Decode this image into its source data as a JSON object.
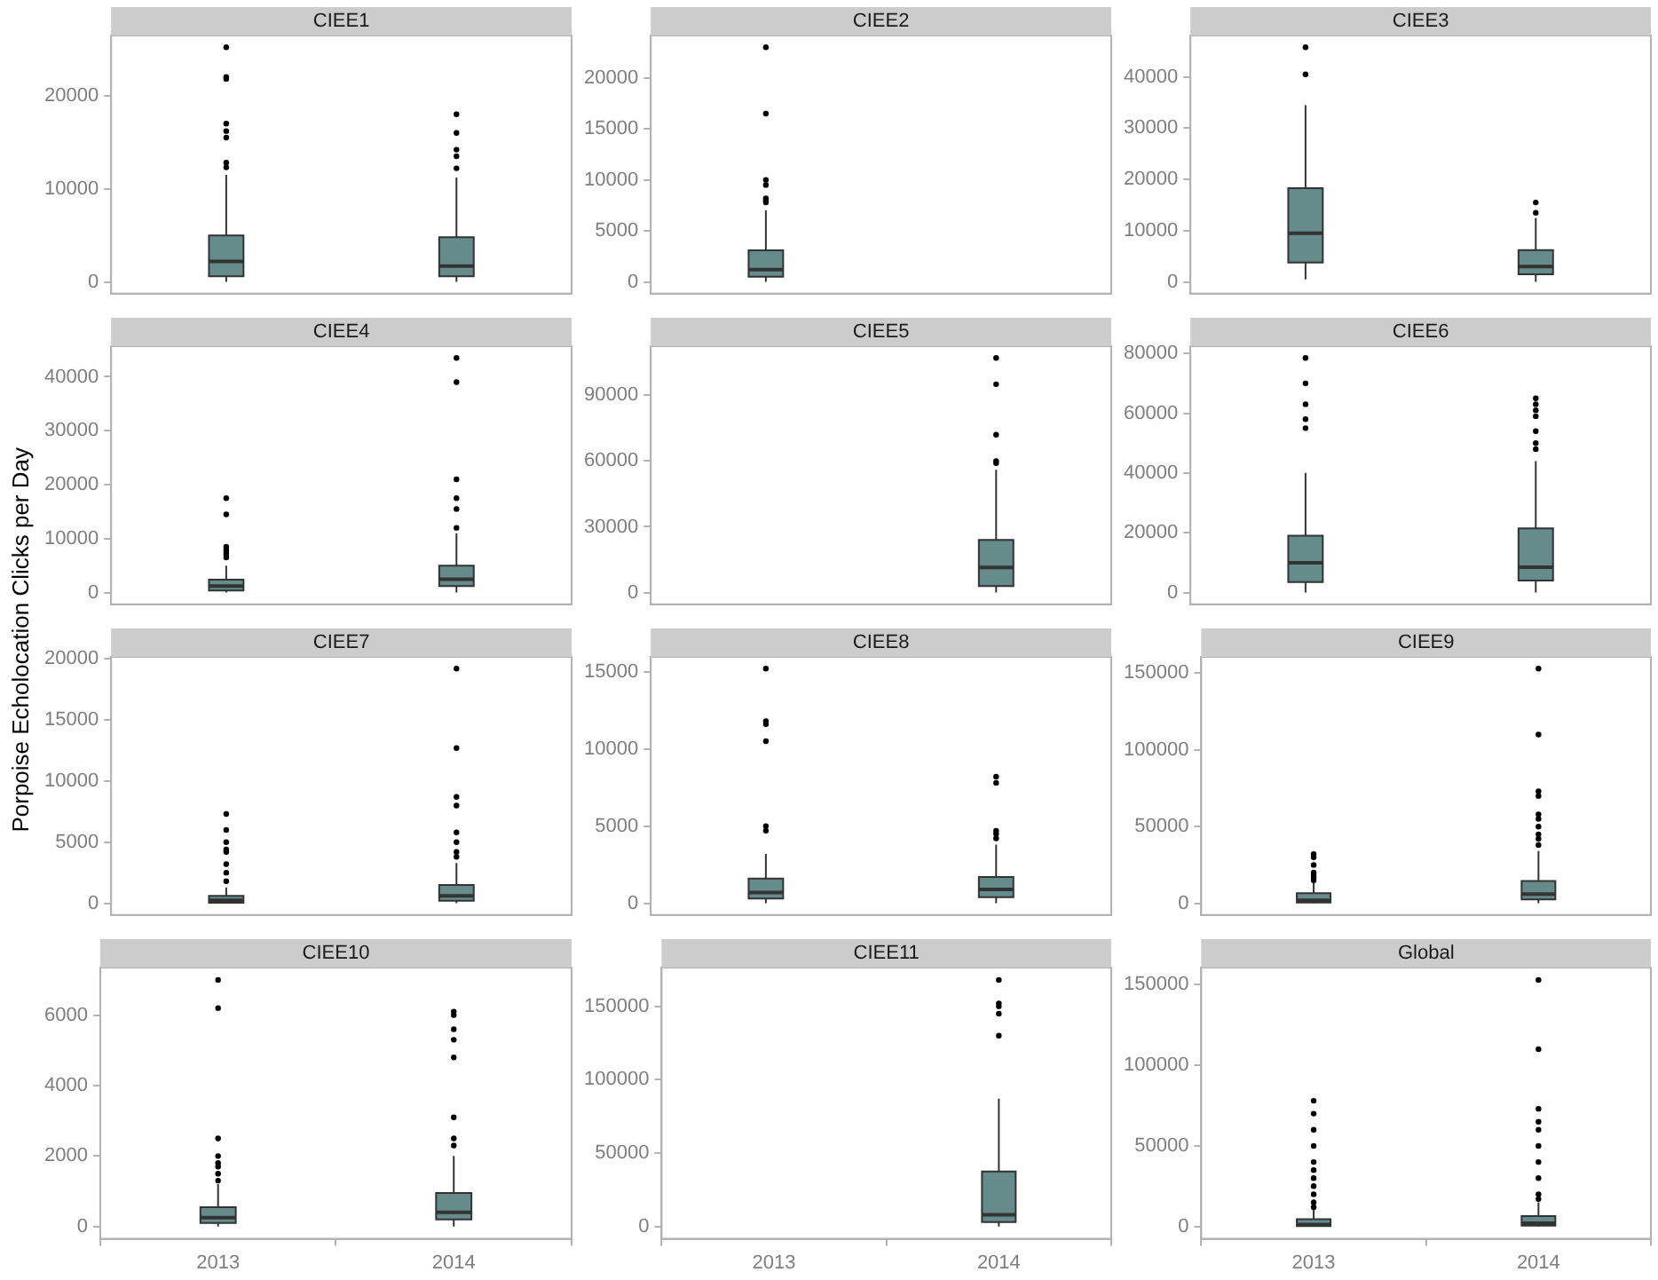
{
  "chart_data": [
    {
      "type": "box",
      "title": "CIEE1",
      "categories": [
        "2013",
        "2014"
      ],
      "color": "#668b8b",
      "ylim": [
        -1260,
        26460
      ],
      "yticks": [
        0,
        10000,
        20000
      ],
      "tick_labels": "y",
      "boxes": [
        {
          "low": 0,
          "q1": 600,
          "median": 2200,
          "q3": 5000,
          "high": 11500,
          "outliers": [
            12300,
            12800,
            15500,
            16200,
            17000,
            21800,
            22000,
            25200
          ]
        },
        {
          "low": 0,
          "q1": 600,
          "median": 1700,
          "q3": 4800,
          "high": 11200,
          "outliers": [
            12200,
            13500,
            14200,
            16000,
            18000
          ]
        }
      ]
    },
    {
      "type": "box",
      "title": "CIEE2",
      "categories": [
        "2013",
        "2014"
      ],
      "color": "#668b8b",
      "ylim": [
        -1150,
        24150
      ],
      "yticks": [
        0,
        5000,
        10000,
        15000,
        20000
      ],
      "tick_labels": "y",
      "boxes": [
        {
          "low": 0,
          "q1": 500,
          "median": 1200,
          "q3": 3100,
          "high": 7000,
          "outliers": [
            7800,
            8000,
            8200,
            9500,
            10000,
            16500,
            23000
          ]
        },
        null
      ]
    },
    {
      "type": "box",
      "title": "CIEE3",
      "categories": [
        "2013",
        "2014"
      ],
      "color": "#668b8b",
      "ylim": [
        -2290,
        48090
      ],
      "yticks": [
        0,
        10000,
        20000,
        30000,
        40000
      ],
      "tick_labels": "y",
      "boxes": [
        {
          "low": 500,
          "q1": 3800,
          "median": 9500,
          "q3": 18300,
          "high": 34500,
          "outliers": [
            40500,
            45800
          ]
        },
        {
          "low": 0,
          "q1": 1500,
          "median": 3000,
          "q3": 6200,
          "high": 12500,
          "outliers": [
            13500,
            15500
          ]
        }
      ]
    },
    {
      "type": "box",
      "title": "CIEE4",
      "categories": [
        "2013",
        "2014"
      ],
      "color": "#668b8b",
      "ylim": [
        -2175,
        45675
      ],
      "yticks": [
        0,
        10000,
        20000,
        30000,
        40000
      ],
      "tick_labels": "y",
      "boxes": [
        {
          "low": 0,
          "q1": 400,
          "median": 1200,
          "q3": 2400,
          "high": 5000,
          "outliers": [
            6500,
            7000,
            7500,
            8000,
            8500,
            14500,
            17500
          ]
        },
        {
          "low": 0,
          "q1": 1200,
          "median": 2500,
          "q3": 5000,
          "high": 11000,
          "outliers": [
            12000,
            15500,
            17500,
            21000,
            39000,
            43500
          ]
        }
      ]
    },
    {
      "type": "box",
      "title": "CIEE5",
      "categories": [
        "2013",
        "2014"
      ],
      "color": "#668b8b",
      "ylim": [
        -5350,
        112350
      ],
      "yticks": [
        0,
        30000,
        60000,
        90000
      ],
      "tick_labels": "y",
      "boxes": [
        null,
        {
          "low": 0,
          "q1": 3000,
          "median": 11500,
          "q3": 24000,
          "high": 56000,
          "outliers": [
            59000,
            60000,
            72000,
            95000,
            107000
          ]
        }
      ]
    },
    {
      "type": "box",
      "title": "CIEE6",
      "categories": [
        "2013",
        "2014"
      ],
      "color": "#668b8b",
      "ylim": [
        -3925,
        82425
      ],
      "yticks": [
        0,
        20000,
        40000,
        60000,
        80000
      ],
      "tick_labels": "y",
      "boxes": [
        {
          "low": 0,
          "q1": 3500,
          "median": 10000,
          "q3": 19000,
          "high": 40000,
          "outliers": [
            55000,
            58000,
            63000,
            70000,
            78500
          ]
        },
        {
          "low": 0,
          "q1": 4000,
          "median": 8500,
          "q3": 21500,
          "high": 44000,
          "outliers": [
            48000,
            50000,
            54000,
            59000,
            61000,
            63000,
            65000
          ]
        }
      ]
    },
    {
      "type": "box",
      "title": "CIEE7",
      "ylabel": "Porpoise Echolocation Clicks per Day",
      "categories": [
        "2013",
        "2014"
      ],
      "color": "#668b8b",
      "ylim": [
        -960,
        20160
      ],
      "yticks": [
        0,
        5000,
        10000,
        15000,
        20000
      ],
      "tick_labels": "y",
      "boxes": [
        {
          "low": 0,
          "q1": 50,
          "median": 250,
          "q3": 600,
          "high": 1300,
          "outliers": [
            1800,
            2500,
            3200,
            4200,
            4400,
            5000,
            6000,
            7300
          ]
        },
        {
          "low": 0,
          "q1": 200,
          "median": 600,
          "q3": 1500,
          "high": 3300,
          "outliers": [
            3800,
            4200,
            5000,
            5800,
            8000,
            8700,
            12700,
            19200
          ]
        }
      ]
    },
    {
      "type": "box",
      "title": "CIEE8",
      "categories": [
        "2013",
        "2014"
      ],
      "color": "#668b8b",
      "ylim": [
        -760,
        15960
      ],
      "yticks": [
        0,
        5000,
        10000,
        15000
      ],
      "tick_labels": "y",
      "boxes": [
        {
          "low": 0,
          "q1": 300,
          "median": 700,
          "q3": 1600,
          "high": 3200,
          "outliers": [
            4700,
            5000,
            10500,
            11600,
            11800,
            15200
          ]
        },
        {
          "low": 0,
          "q1": 400,
          "median": 900,
          "q3": 1700,
          "high": 3800,
          "outliers": [
            4200,
            4500,
            4700,
            7800,
            8200
          ]
        }
      ]
    },
    {
      "type": "box",
      "title": "CIEE9",
      "categories": [
        "2013",
        "2014"
      ],
      "color": "#668b8b",
      "ylim": [
        -7650,
        160650
      ],
      "yticks": [
        0,
        50000,
        100000,
        150000
      ],
      "tick_labels": "y",
      "boxes": [
        {
          "low": 0,
          "q1": 500,
          "median": 2000,
          "q3": 6500,
          "high": 14000,
          "outliers": [
            15000,
            16500,
            18000,
            20000,
            25000,
            30000,
            32000
          ]
        },
        {
          "low": 0,
          "q1": 2500,
          "median": 6000,
          "q3": 14500,
          "high": 34000,
          "outliers": [
            38000,
            42000,
            45000,
            50000,
            55000,
            58000,
            70000,
            73000,
            110000,
            153000
          ]
        }
      ]
    },
    {
      "type": "box",
      "title": "CIEE10",
      "categories": [
        "2013",
        "2014"
      ],
      "color": "#668b8b",
      "ylim": [
        -350,
        7350
      ],
      "yticks": [
        0,
        2000,
        4000,
        6000
      ],
      "boxes": [
        {
          "low": 0,
          "q1": 100,
          "median": 250,
          "q3": 550,
          "high": 1200,
          "outliers": [
            1300,
            1500,
            1700,
            1800,
            2000,
            2500,
            6200,
            7000
          ]
        },
        {
          "low": 0,
          "q1": 200,
          "median": 400,
          "q3": 950,
          "high": 2000,
          "outliers": [
            2300,
            2500,
            3100,
            4800,
            5300,
            5600,
            6000,
            6100
          ]
        }
      ]
    },
    {
      "type": "box",
      "title": "CIEE11",
      "categories": [
        "2013",
        "2014"
      ],
      "color": "#668b8b",
      "ylim": [
        -8400,
        176400
      ],
      "yticks": [
        0,
        50000,
        100000,
        150000
      ],
      "boxes": [
        null,
        {
          "low": 0,
          "q1": 3000,
          "median": 8000,
          "q3": 37500,
          "high": 87000,
          "outliers": [
            130000,
            145000,
            150000,
            152000,
            168000
          ]
        }
      ]
    },
    {
      "type": "box",
      "title": "Global",
      "categories": [
        "2013",
        "2014"
      ],
      "color": "#668b8b",
      "ylim": [
        -7650,
        160650
      ],
      "yticks": [
        0,
        50000,
        100000,
        150000
      ],
      "boxes": [
        {
          "low": 0,
          "q1": 300,
          "median": 1200,
          "q3": 4500,
          "high": 10500,
          "outliers": [
            12000,
            15000,
            20000,
            25000,
            30000,
            35000,
            40000,
            50000,
            60000,
            70000,
            78000
          ]
        },
        {
          "low": 0,
          "q1": 500,
          "median": 2000,
          "q3": 6500,
          "high": 15000,
          "outliers": [
            17000,
            20000,
            30000,
            40000,
            50000,
            60000,
            65000,
            73000,
            110000,
            153000
          ]
        }
      ]
    }
  ]
}
